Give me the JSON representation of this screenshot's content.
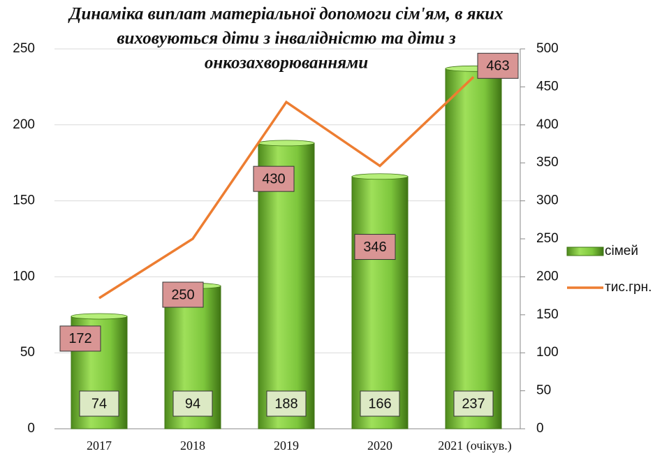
{
  "chart_data": {
    "type": "bar_line",
    "title": [
      "Динаміка  виплат матеріальної допомоги сім'ям, в яких",
      "виховуються діти з інвалідністю та діти з",
      "онкозахворюваннями"
    ],
    "categories": [
      "2017",
      "2018",
      "2019",
      "2020",
      "2021 (очікув.)"
    ],
    "series": [
      {
        "name": "сімей",
        "color": "#7dc63c",
        "type": "bar",
        "values": [
          74,
          94,
          188,
          166,
          237
        ]
      },
      {
        "name": "тис.грн.",
        "color": "#ed7d31",
        "type": "line",
        "axis": "y2",
        "values": [
          172,
          250,
          430,
          346,
          463
        ]
      }
    ],
    "ylim": [
      0,
      250
    ],
    "yticks": [
      0,
      50,
      100,
      150,
      200,
      250
    ],
    "y2lim": [
      0,
      500
    ],
    "y2ticks": [
      0,
      50,
      100,
      150,
      200,
      250,
      300,
      350,
      400,
      450,
      500
    ],
    "legend": "right"
  }
}
